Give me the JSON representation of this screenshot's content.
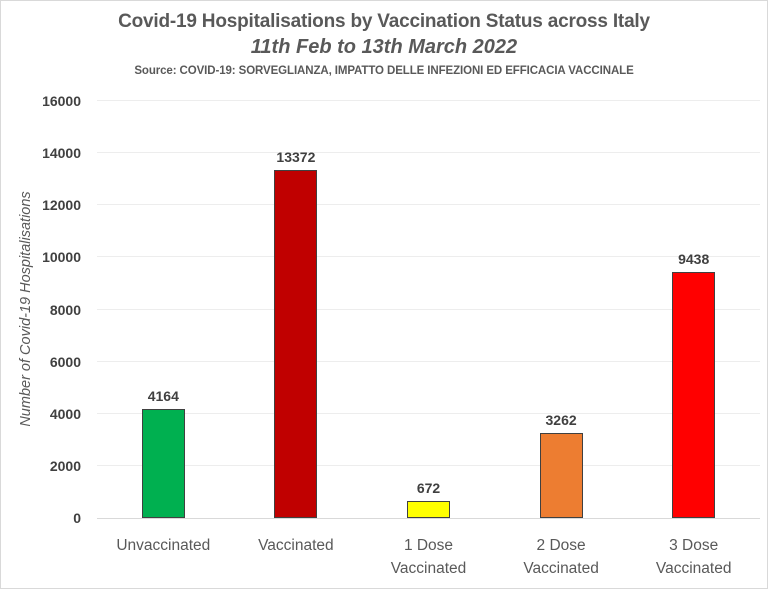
{
  "header": {
    "title": "Covid-19 Hospitalisations by Vaccination Status across Italy",
    "subtitle": "11th Feb to 13th March 2022",
    "source": "Source: COVID-19: SORVEGLIANZA, IMPATTO DELLE INFEZIONI ED EFFICACIA VACCINALE"
  },
  "chart_data": {
    "type": "bar",
    "title": "Covid-19 Hospitalisations by Vaccination Status across Italy",
    "subtitle": "11th Feb to 13th March 2022",
    "source": "Source: COVID-19: SORVEGLIANZA, IMPATTO DELLE INFEZIONI ED EFFICACIA VACCINALE",
    "categories": [
      "Unvaccinated",
      "Vaccinated",
      "1 Dose Vaccinated",
      "2 Dose Vaccinated",
      "3 Dose Vaccinated"
    ],
    "category_lines": [
      [
        "Unvaccinated"
      ],
      [
        "Vaccinated"
      ],
      [
        "1 Dose",
        "Vaccinated"
      ],
      [
        "2 Dose",
        "Vaccinated"
      ],
      [
        "3 Dose",
        "Vaccinated"
      ]
    ],
    "values": [
      4164,
      13372,
      672,
      3262,
      9438
    ],
    "data_labels": [
      "4164",
      "13372",
      "672",
      "3262",
      "9438"
    ],
    "bar_colors": [
      "#00B050",
      "#C00000",
      "#FFFF00",
      "#ED7D31",
      "#FF0000"
    ],
    "bar_border_color": "#404040",
    "xlabel": "",
    "ylabel": "Number of Covid-19 Hospitalisations",
    "ylim": [
      0,
      16000
    ],
    "yticks": [
      0,
      2000,
      4000,
      6000,
      8000,
      10000,
      12000,
      14000,
      16000
    ],
    "ytick_labels": [
      "0",
      "2000",
      "4000",
      "6000",
      "8000",
      "10000",
      "12000",
      "14000",
      "16000"
    ],
    "grid": true,
    "legend_position": "none"
  },
  "colors": {
    "background": "#FFFFFF",
    "border": "#D9D9D9",
    "title_text": "#595959",
    "axis_text": "#595959",
    "tick_text": "#404040",
    "gridline": "#EDEDED",
    "axis_line": "#D9D9D9"
  }
}
